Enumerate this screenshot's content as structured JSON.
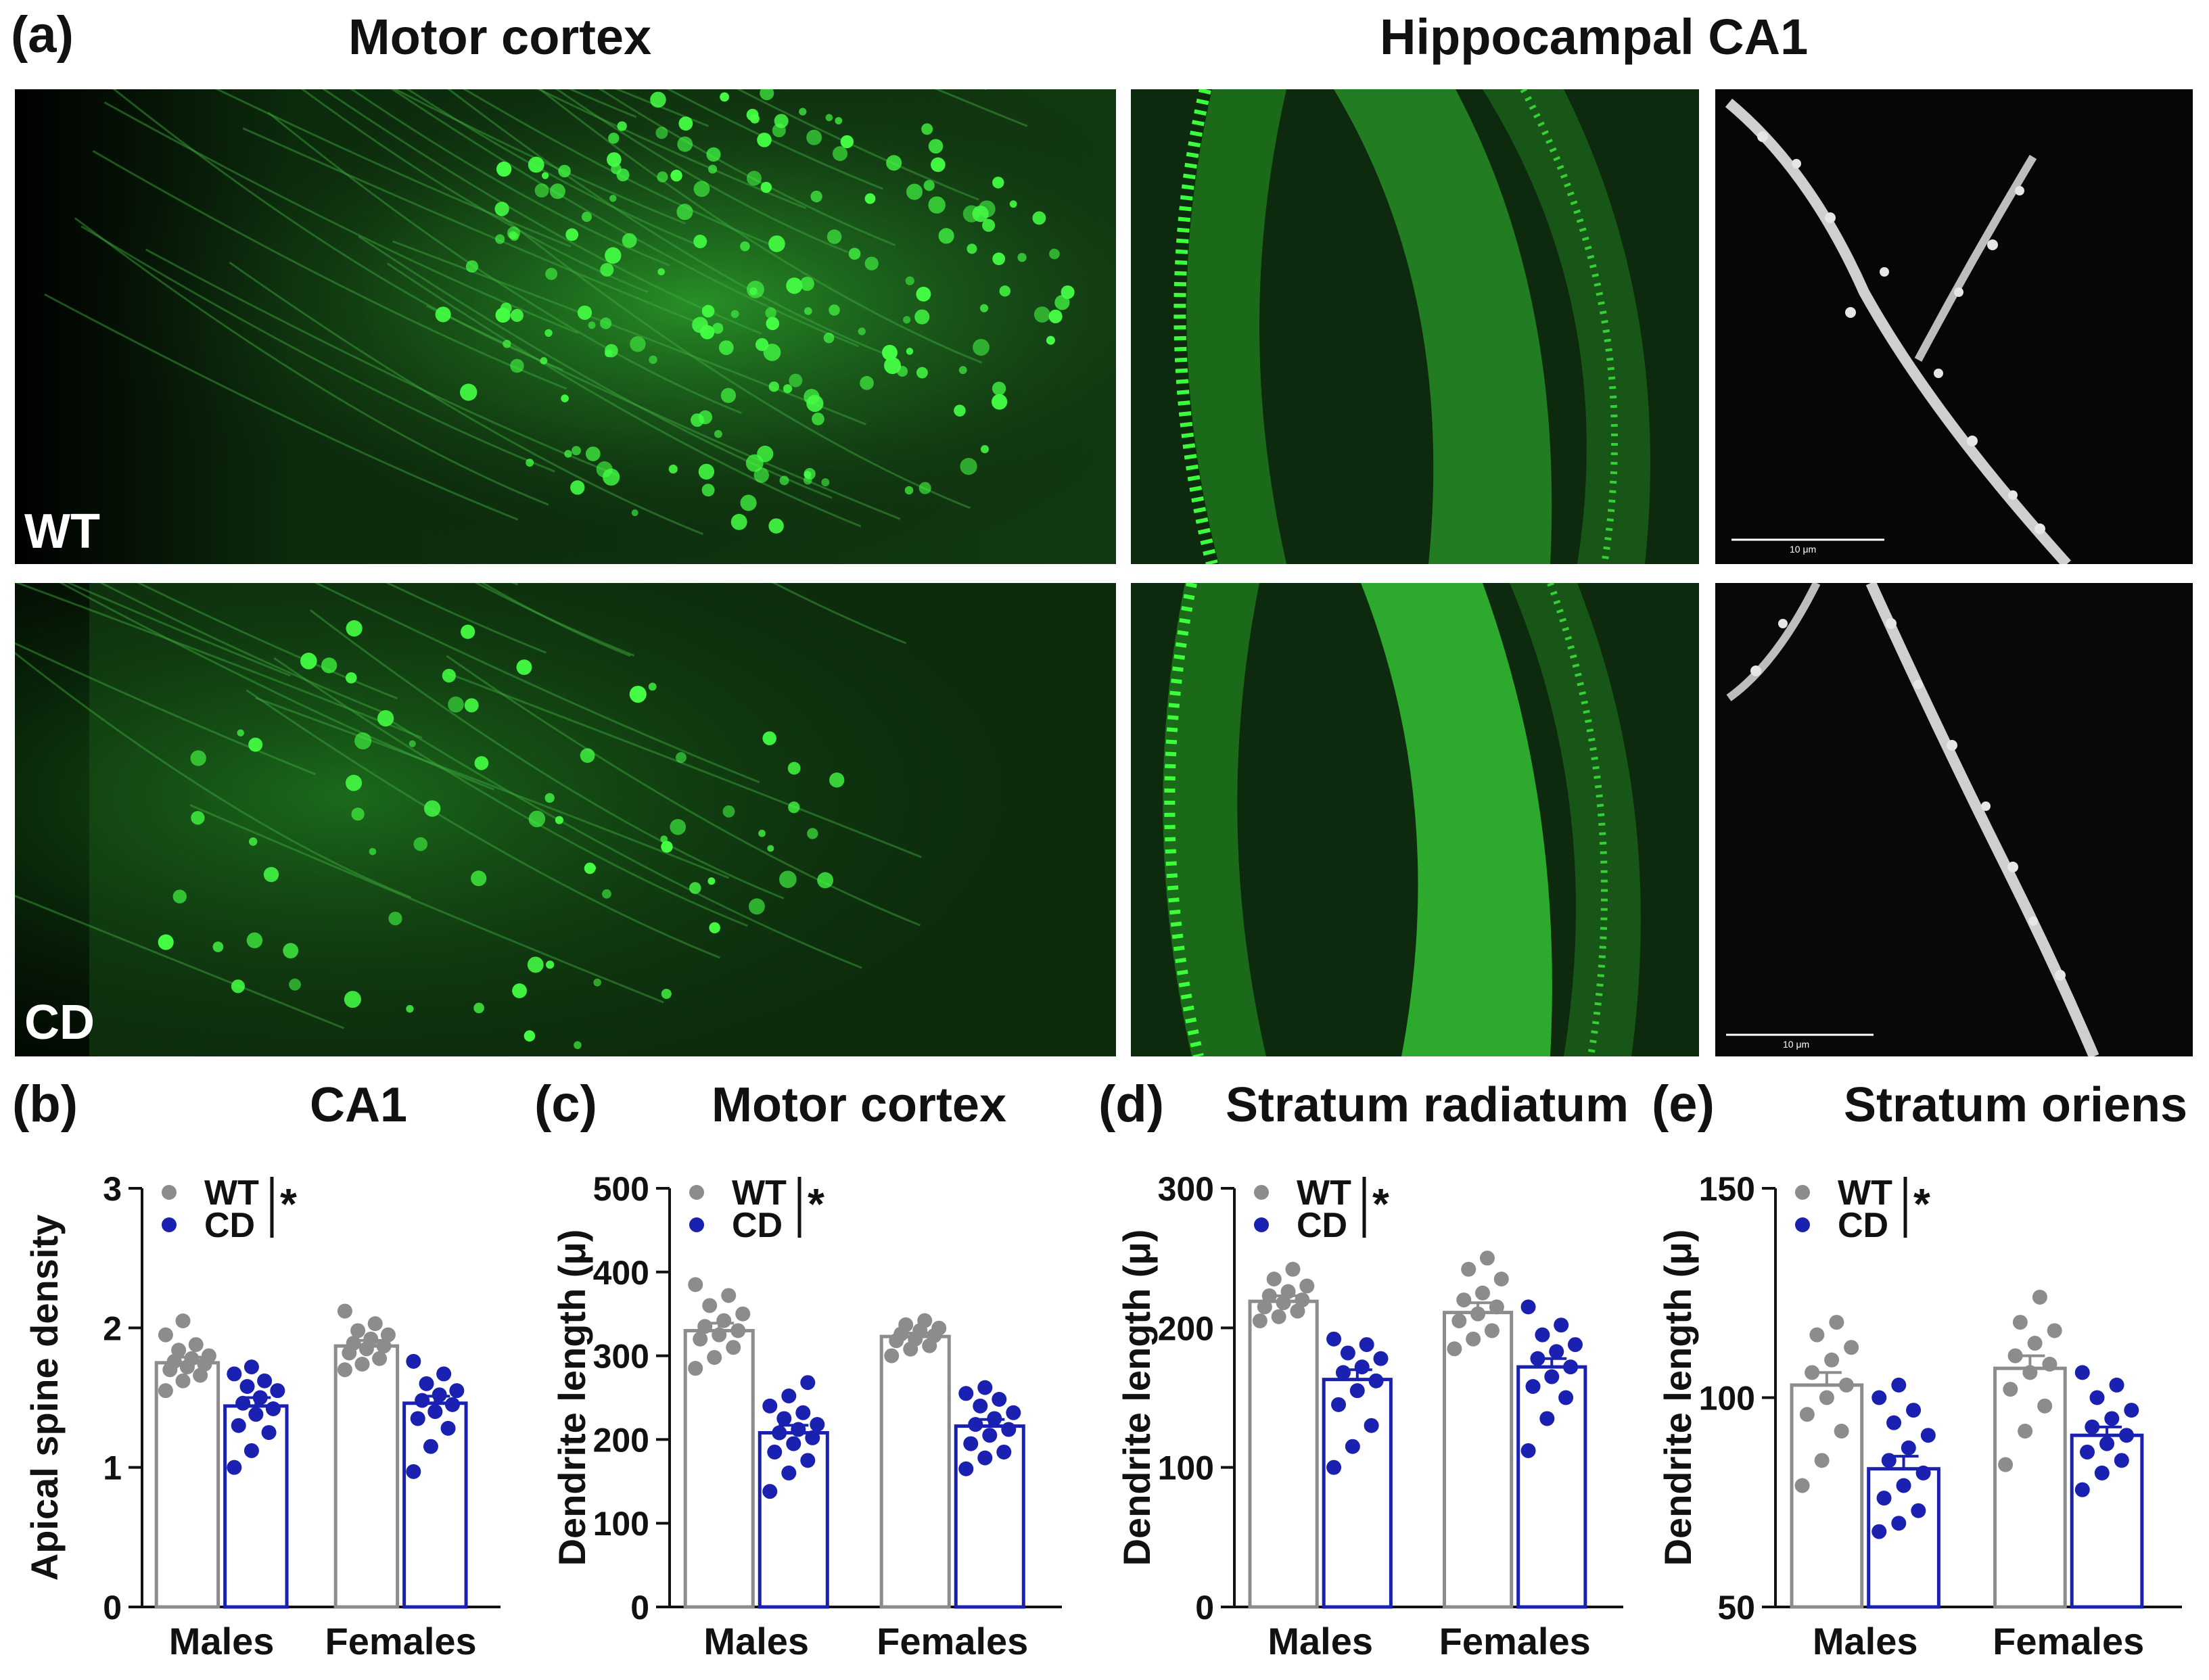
{
  "figure": {
    "panel_a": {
      "letter": "(a)",
      "title_left": "Motor cortex",
      "title_right": "Hippocampal CA1",
      "row_labels": [
        "WT",
        "CD"
      ],
      "scale_bar_label": "10 μm",
      "colors": {
        "fluorescence": "#22e022",
        "confocal": "#e8e8e8"
      }
    }
  },
  "chart_data": [
    {
      "letter": "(b)",
      "type": "bar",
      "title": "CA1",
      "ylabel": "Apical spine density",
      "xlabel": "",
      "categories": [
        "Males",
        "Females"
      ],
      "ylim": [
        0,
        3
      ],
      "yticks": [
        "0",
        "1",
        "2",
        "3"
      ],
      "yticks_values": [
        0,
        1,
        2,
        3
      ],
      "legend": {
        "placement": "top-left",
        "significance": "*"
      },
      "series": [
        {
          "name": "WT",
          "color": "#8c8c8c",
          "values": [
            1.75,
            1.87
          ],
          "errors": [
            0.04,
            0.04
          ],
          "points": [
            [
              1.55,
              1.62,
              1.66,
              1.7,
              1.72,
              1.74,
              1.76,
              1.78,
              1.8,
              1.84,
              1.88,
              1.95,
              2.05
            ],
            [
              1.7,
              1.74,
              1.78,
              1.82,
              1.85,
              1.87,
              1.89,
              1.92,
              1.95,
              1.98,
              2.03,
              2.12
            ]
          ]
        },
        {
          "name": "CD",
          "color": "#1a20b0",
          "values": [
            1.44,
            1.46
          ],
          "errors": [
            0.06,
            0.05
          ],
          "points": [
            [
              1.0,
              1.12,
              1.25,
              1.3,
              1.38,
              1.42,
              1.46,
              1.5,
              1.55,
              1.58,
              1.62,
              1.67,
              1.72
            ],
            [
              0.97,
              1.15,
              1.28,
              1.35,
              1.4,
              1.45,
              1.48,
              1.52,
              1.55,
              1.6,
              1.67,
              1.76
            ]
          ]
        }
      ]
    },
    {
      "letter": "(c)",
      "type": "bar",
      "title": "Motor cortex",
      "ylabel": "Dendrite length (μ)",
      "xlabel": "",
      "categories": [
        "Males",
        "Females"
      ],
      "ylim": [
        0,
        500
      ],
      "yticks": [
        "0",
        "100",
        "200",
        "300",
        "400",
        "500"
      ],
      "yticks_values": [
        0,
        100,
        200,
        300,
        400,
        500
      ],
      "legend": {
        "placement": "top-left",
        "significance": "*"
      },
      "series": [
        {
          "name": "WT",
          "color": "#8c8c8c",
          "values": [
            330,
            323
          ],
          "errors": [
            9,
            4
          ],
          "points": [
            [
              285,
              298,
              310,
              320,
              325,
              330,
              335,
              342,
              350,
              360,
              372,
              385
            ],
            [
              300,
              308,
              312,
              318,
              320,
              324,
              326,
              330,
              333,
              337,
              342
            ]
          ]
        },
        {
          "name": "CD",
          "color": "#1a20b0",
          "values": [
            208,
            216
          ],
          "errors": [
            9,
            8
          ],
          "points": [
            [
              138,
              160,
              175,
              185,
              195,
              202,
              208,
              212,
              218,
              225,
              232,
              240,
              252,
              268
            ],
            [
              165,
              178,
              185,
              195,
              205,
              212,
              218,
              225,
              232,
              240,
              248,
              255,
              262
            ]
          ]
        }
      ]
    },
    {
      "letter": "(d)",
      "type": "bar",
      "title": "Stratum radiatum",
      "ylabel": "Dendrite length (μ)",
      "xlabel": "",
      "categories": [
        "Males",
        "Females"
      ],
      "ylim": [
        0,
        300
      ],
      "yticks": [
        "0",
        "100",
        "200",
        "300"
      ],
      "yticks_values": [
        0,
        100,
        200,
        300
      ],
      "legend": {
        "placement": "top-left",
        "significance": "*"
      },
      "series": [
        {
          "name": "WT",
          "color": "#8c8c8c",
          "values": [
            219,
            211
          ],
          "errors": [
            4,
            7
          ],
          "points": [
            [
              205,
              208,
              212,
              215,
              218,
              220,
              223,
              226,
              230,
              235,
              242
            ],
            [
              185,
              192,
              198,
              205,
              210,
              215,
              220,
              225,
              235,
              242,
              250
            ]
          ]
        },
        {
          "name": "CD",
          "color": "#1a20b0",
          "values": [
            163,
            172
          ],
          "errors": [
            7,
            6
          ],
          "points": [
            [
              100,
              115,
              130,
              145,
              155,
              162,
              168,
              172,
              178,
              182,
              188,
              192
            ],
            [
              112,
              135,
              150,
              158,
              165,
              172,
              178,
              183,
              188,
              195,
              202,
              215
            ]
          ]
        }
      ]
    },
    {
      "letter": "(e)",
      "type": "bar",
      "title": "Stratum oriens",
      "ylabel": "Dendrite length (μ)",
      "xlabel": "",
      "categories": [
        "Males",
        "Females"
      ],
      "ylim": [
        50,
        150
      ],
      "yticks": [
        "50",
        "100",
        "150"
      ],
      "yticks_values": [
        50,
        100,
        150
      ],
      "legend": {
        "placement": "top-left",
        "significance": "*"
      },
      "series": [
        {
          "name": "WT",
          "color": "#8c8c8c",
          "values": [
            103,
            107
          ],
          "errors": [
            3,
            3
          ],
          "points": [
            [
              79,
              85,
              92,
              96,
              100,
              103,
              106,
              109,
              112,
              115,
              118
            ],
            [
              84,
              92,
              98,
              102,
              106,
              108,
              110,
              113,
              116,
              118,
              124
            ]
          ]
        },
        {
          "name": "CD",
          "color": "#1a20b0",
          "values": [
            83,
            91
          ],
          "errors": [
            3,
            2
          ],
          "points": [
            [
              68,
              70,
              73,
              76,
              79,
              82,
              85,
              88,
              91,
              94,
              97,
              100,
              103
            ],
            [
              78,
              82,
              85,
              87,
              89,
              91,
              93,
              95,
              97,
              100,
              103,
              106
            ]
          ]
        }
      ]
    }
  ]
}
